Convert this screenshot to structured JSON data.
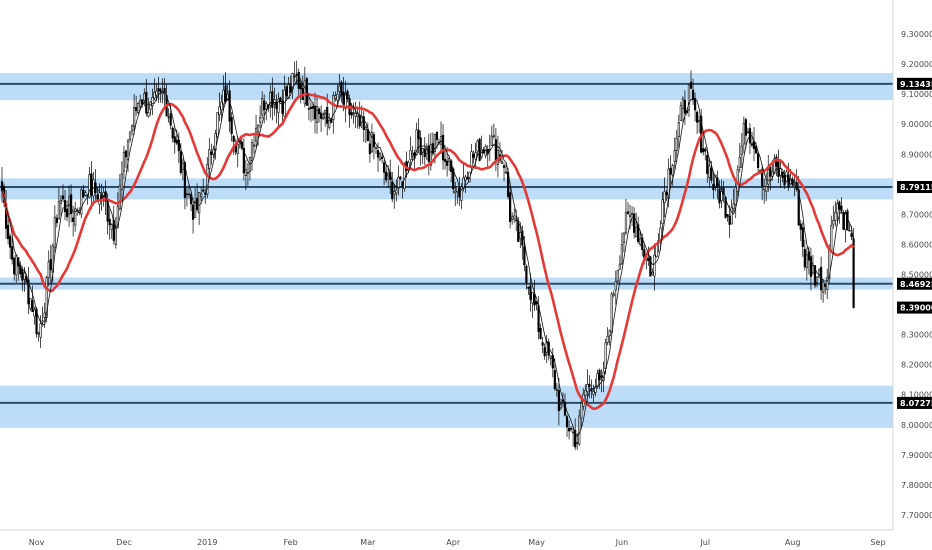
{
  "chart_data": {
    "type": "candlestick",
    "ylim": [
      7.65,
      9.38
    ],
    "y_ticks": [
      {
        "value": 9.3,
        "label": "9.30000"
      },
      {
        "value": 9.2,
        "label": "9.20000"
      },
      {
        "value": 9.1,
        "label": "9.10000"
      },
      {
        "value": 9.0,
        "label": "9.00000"
      },
      {
        "value": 8.9,
        "label": "8.90000"
      },
      {
        "value": 8.7,
        "label": "8.70000"
      },
      {
        "value": 8.6,
        "label": "8.60000"
      },
      {
        "value": 8.5,
        "label": "8.50000"
      },
      {
        "value": 8.3,
        "label": "8.30000"
      },
      {
        "value": 8.2,
        "label": "8.20000"
      },
      {
        "value": 8.1,
        "label": "8.10000"
      },
      {
        "value": 8.0,
        "label": "8.00000"
      },
      {
        "value": 7.9,
        "label": "7.90000"
      },
      {
        "value": 7.8,
        "label": "7.80000"
      },
      {
        "value": 7.7,
        "label": "7.70000"
      }
    ],
    "x_ticks": [
      {
        "index": 17,
        "label": "Nov"
      },
      {
        "index": 60,
        "label": "Dec"
      },
      {
        "index": 101,
        "label": "2019"
      },
      {
        "index": 142,
        "label": "Feb"
      },
      {
        "index": 180,
        "label": "Mar"
      },
      {
        "index": 222,
        "label": "Apr"
      },
      {
        "index": 263,
        "label": "May"
      },
      {
        "index": 305,
        "label": "Jun"
      },
      {
        "index": 346,
        "label": "Jul"
      },
      {
        "index": 389,
        "label": "Aug"
      },
      {
        "index": 431,
        "label": "Sep"
      }
    ],
    "candle_count": 420,
    "anchors": [
      [
        0,
        8.78
      ],
      [
        5,
        8.55
      ],
      [
        10,
        8.5
      ],
      [
        15,
        8.4
      ],
      [
        18,
        8.3
      ],
      [
        22,
        8.45
      ],
      [
        28,
        8.75
      ],
      [
        35,
        8.7
      ],
      [
        42,
        8.8
      ],
      [
        50,
        8.75
      ],
      [
        55,
        8.65
      ],
      [
        62,
        8.95
      ],
      [
        68,
        9.1
      ],
      [
        73,
        9.05
      ],
      [
        80,
        9.1
      ],
      [
        85,
        8.95
      ],
      [
        90,
        8.8
      ],
      [
        95,
        8.7
      ],
      [
        100,
        8.8
      ],
      [
        105,
        9.0
      ],
      [
        110,
        9.1
      ],
      [
        115,
        8.95
      ],
      [
        120,
        8.85
      ],
      [
        125,
        9.0
      ],
      [
        130,
        9.1
      ],
      [
        138,
        9.08
      ],
      [
        145,
        9.15
      ],
      [
        150,
        9.1
      ],
      [
        155,
        9.05
      ],
      [
        160,
        9.0
      ],
      [
        165,
        9.1
      ],
      [
        170,
        9.05
      ],
      [
        175,
        9.0
      ],
      [
        180,
        8.95
      ],
      [
        185,
        8.9
      ],
      [
        190,
        8.8
      ],
      [
        195,
        8.78
      ],
      [
        200,
        8.9
      ],
      [
        205,
        8.95
      ],
      [
        210,
        8.9
      ],
      [
        215,
        8.95
      ],
      [
        220,
        8.85
      ],
      [
        225,
        8.78
      ],
      [
        230,
        8.88
      ],
      [
        240,
        8.95
      ],
      [
        247,
        8.88
      ],
      [
        250,
        8.7
      ],
      [
        255,
        8.6
      ],
      [
        260,
        8.45
      ],
      [
        265,
        8.3
      ],
      [
        270,
        8.2
      ],
      [
        275,
        8.05
      ],
      [
        280,
        7.98
      ],
      [
        283,
        7.95
      ],
      [
        286,
        8.1
      ],
      [
        290,
        8.15
      ],
      [
        295,
        8.12
      ],
      [
        298,
        8.3
      ],
      [
        302,
        8.5
      ],
      [
        306,
        8.65
      ],
      [
        310,
        8.7
      ],
      [
        315,
        8.6
      ],
      [
        320,
        8.5
      ],
      [
        325,
        8.75
      ],
      [
        330,
        8.9
      ],
      [
        335,
        9.05
      ],
      [
        338,
        9.1
      ],
      [
        342,
        9.0
      ],
      [
        346,
        8.9
      ],
      [
        350,
        8.8
      ],
      [
        355,
        8.75
      ],
      [
        358,
        8.7
      ],
      [
        362,
        8.85
      ],
      [
        366,
        9.0
      ],
      [
        370,
        8.95
      ],
      [
        375,
        8.8
      ],
      [
        380,
        8.85
      ],
      [
        385,
        8.82
      ],
      [
        390,
        8.8
      ],
      [
        395,
        8.55
      ],
      [
        400,
        8.5
      ],
      [
        405,
        8.48
      ],
      [
        410,
        8.75
      ],
      [
        415,
        8.68
      ],
      [
        420,
        8.55
      ],
      [
        424,
        8.48
      ],
      [
        427,
        8.39
      ]
    ],
    "zones": [
      {
        "low": 9.08,
        "high": 9.17,
        "line": 9.13435,
        "label": "9.13435",
        "start_index": -22
      },
      {
        "low": 8.75,
        "high": 8.82,
        "line": 8.79115,
        "label": "8.79115",
        "start_index": -27
      },
      {
        "low": 8.45,
        "high": 8.49,
        "line": 8.46925,
        "label": "8.46925",
        "start_index": -8
      },
      {
        "low": 7.99,
        "high": 8.13,
        "line": 8.07275,
        "label": "8.07275",
        "start_index": -30
      }
    ],
    "last_price": {
      "value": 8.39,
      "label": "8.39000"
    },
    "colors": {
      "zone_fill": "#bcdcf7",
      "level_line": "#2d4d6b",
      "moving_average": "#e53935",
      "candle": "#000000",
      "tag_bg": "#000000"
    }
  }
}
